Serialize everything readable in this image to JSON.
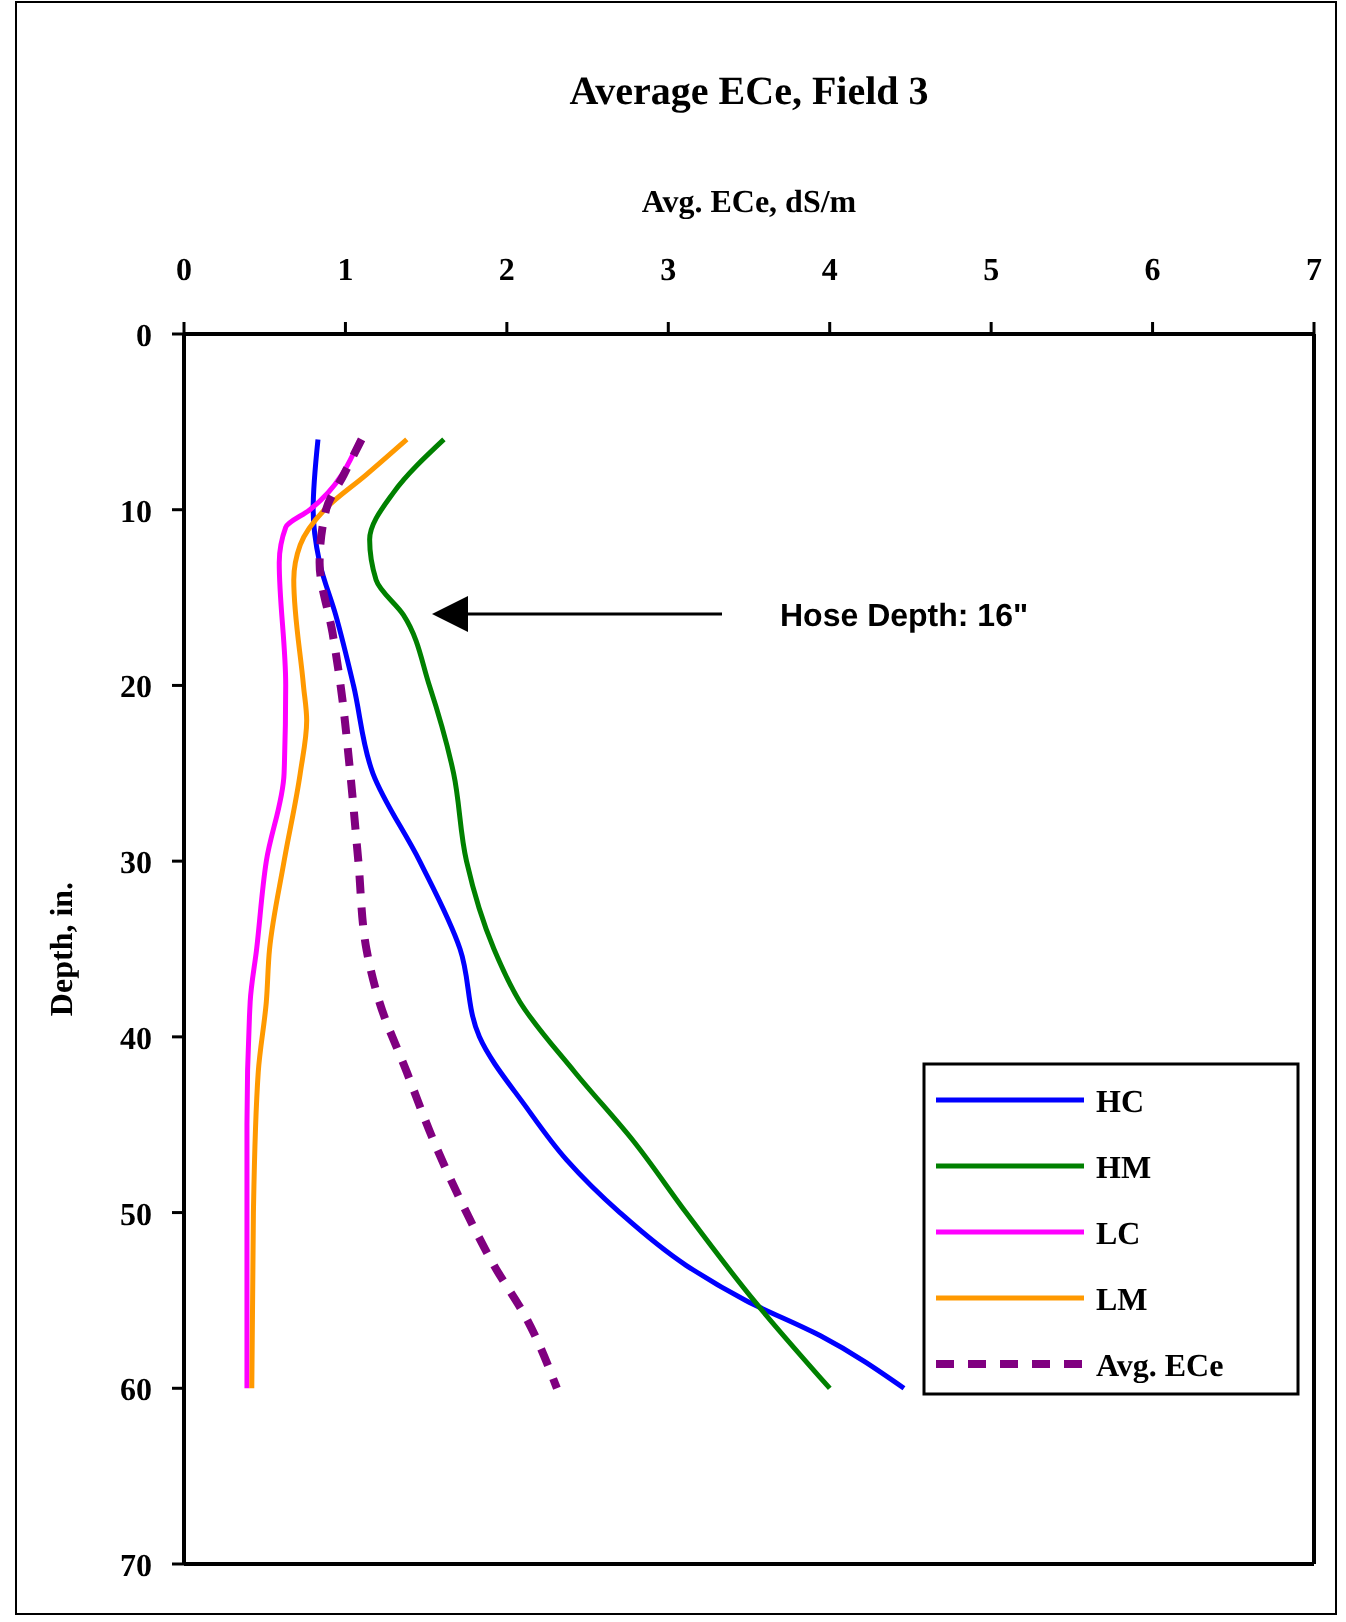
{
  "chart_data": {
    "type": "line",
    "title": "Average ECe, Field 3",
    "xlabel": "Avg. ECe, dS/m",
    "ylabel": "Depth, in.",
    "xlim": [
      0,
      7
    ],
    "xticks": [
      0,
      1,
      2,
      3,
      4,
      5,
      6,
      7
    ],
    "ylim": [
      70,
      0
    ],
    "yticks": [
      0,
      10,
      20,
      30,
      40,
      50,
      60,
      70
    ],
    "grid": false,
    "legend": "bottom right",
    "marker": "none",
    "annotations": [
      "Hose Depth: 16\""
    ],
    "series": [
      {
        "name": "HC",
        "color": "#0000ff",
        "line_style": "solid",
        "x": [
          0.83,
          0.8,
          0.84,
          0.94,
          1.05,
          1.17,
          1.46,
          1.71,
          1.83,
          2.12,
          2.37,
          2.7,
          3.11,
          3.48,
          3.94,
          4.46
        ],
        "values": [
          6,
          10,
          13,
          16,
          20,
          25,
          30,
          35,
          40,
          44,
          47,
          50,
          53,
          55,
          57,
          60
        ]
      },
      {
        "name": "HM",
        "color": "#008000",
        "line_style": "solid",
        "x": [
          1.61,
          1.3,
          1.15,
          1.19,
          1.36,
          1.52,
          1.67,
          1.75,
          1.92,
          2.08,
          2.42,
          2.79,
          3.11,
          3.53,
          4.0
        ],
        "values": [
          6,
          9,
          11.7,
          14,
          16,
          20,
          25,
          30,
          35,
          38,
          42,
          46,
          50,
          55,
          60
        ]
      },
      {
        "name": "LC",
        "color": "#ff00ff",
        "line_style": "solid",
        "x": [
          1.09,
          0.78,
          0.63,
          0.59,
          0.63,
          0.62,
          0.51,
          0.45,
          0.41,
          0.39,
          0.39
        ],
        "values": [
          6,
          10,
          11,
          13,
          20,
          25,
          30,
          35,
          38,
          45,
          60
        ]
      },
      {
        "name": "LM",
        "color": "#ff9900",
        "line_style": "solid",
        "x": [
          1.38,
          1.13,
          0.87,
          0.72,
          0.68,
          0.74,
          0.76,
          0.72,
          0.62,
          0.53,
          0.51,
          0.46,
          0.43,
          0.42
        ],
        "values": [
          6,
          8,
          10,
          12,
          14,
          20,
          22,
          25,
          30,
          35,
          38,
          42,
          50,
          60
        ]
      },
      {
        "name": "Avg. ECe",
        "color": "#800080",
        "line_style": "dashed",
        "x": [
          1.1,
          0.99,
          0.88,
          0.84,
          0.92,
          0.97,
          1.03,
          1.08,
          1.13,
          1.21,
          1.38,
          1.55,
          1.75,
          1.92,
          2.12,
          2.31
        ],
        "values": [
          6,
          8,
          10,
          13,
          17,
          20,
          25,
          30,
          35,
          38,
          42,
          46,
          50,
          53,
          56,
          60
        ]
      }
    ]
  }
}
